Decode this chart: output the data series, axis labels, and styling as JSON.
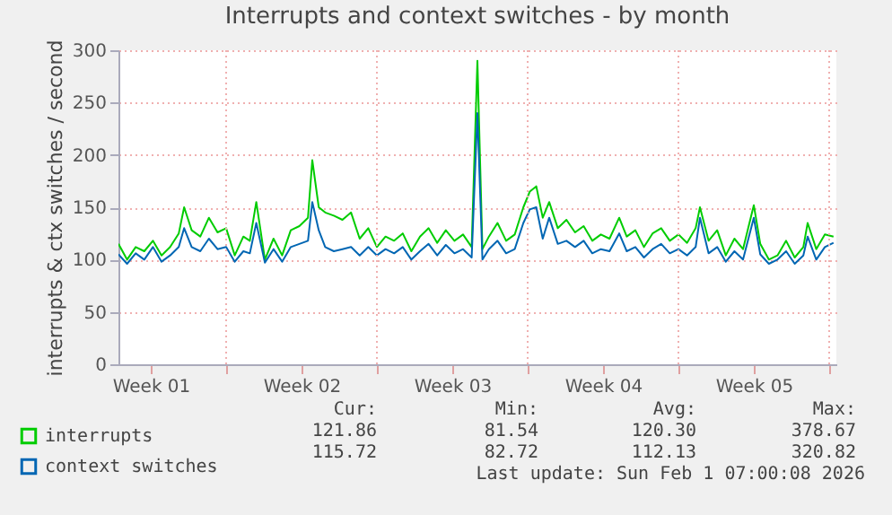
{
  "chart_data": {
    "type": "line",
    "title": "Interrupts and context switches - by month",
    "ylabel": "interrupts & ctx switches / second",
    "x": [
      "2025-12-31T00:00",
      "2025-12-31T09:36",
      "2025-12-31T19:12",
      "2026-01-01T04:48",
      "2026-01-01T14:24",
      "2026-01-02T00:00",
      "2026-01-02T09:36",
      "2026-01-02T19:12",
      "2026-01-03T01:12",
      "2026-01-03T09:36",
      "2026-01-03T19:12",
      "2026-01-04T04:48",
      "2026-01-04T14:24",
      "2026-01-05T00:00",
      "2026-01-05T09:36",
      "2026-01-05T19:12",
      "2026-01-06T02:24",
      "2026-01-06T09:36",
      "2026-01-06T19:12",
      "2026-01-07T04:48",
      "2026-01-07T14:24",
      "2026-01-08T00:00",
      "2026-01-08T09:36",
      "2026-01-08T19:12",
      "2026-01-09T00:00",
      "2026-01-09T07:12",
      "2026-01-09T14:24",
      "2026-01-10T00:00",
      "2026-01-10T09:36",
      "2026-01-10T19:12",
      "2026-01-11T04:48",
      "2026-01-11T14:24",
      "2026-01-12T00:00",
      "2026-01-12T09:36",
      "2026-01-12T19:12",
      "2026-01-13T04:48",
      "2026-01-13T14:24",
      "2026-01-14T00:00",
      "2026-01-14T09:36",
      "2026-01-14T19:12",
      "2026-01-15T04:48",
      "2026-01-15T14:24",
      "2026-01-16T00:00",
      "2026-01-16T09:36",
      "2026-01-16T16:00",
      "2026-01-16T21:36",
      "2026-01-17T04:48",
      "2026-01-17T14:24",
      "2026-01-18T00:00",
      "2026-01-18T09:36",
      "2026-01-18T19:12",
      "2026-01-19T02:24",
      "2026-01-19T09:36",
      "2026-01-19T16:48",
      "2026-01-20T00:00",
      "2026-01-20T09:36",
      "2026-01-20T19:12",
      "2026-01-21T04:48",
      "2026-01-21T14:24",
      "2026-01-22T00:00",
      "2026-01-22T09:36",
      "2026-01-22T19:12",
      "2026-01-23T06:00",
      "2026-01-23T14:24",
      "2026-01-24T00:00",
      "2026-01-24T09:36",
      "2026-01-24T19:12",
      "2026-01-25T04:48",
      "2026-01-25T14:24",
      "2026-01-26T00:00",
      "2026-01-26T09:36",
      "2026-01-26T19:12",
      "2026-01-27T00:00",
      "2026-01-27T09:36",
      "2026-01-27T19:12",
      "2026-01-28T04:48",
      "2026-01-28T14:24",
      "2026-01-29T00:00",
      "2026-01-29T12:00",
      "2026-01-29T19:12",
      "2026-01-30T04:48",
      "2026-01-30T14:24",
      "2026-01-31T00:00",
      "2026-01-31T09:36",
      "2026-01-31T19:12",
      "2026-02-01T00:00",
      "2026-02-01T09:36",
      "2026-02-01T19:12",
      "2026-02-02T04:48"
    ],
    "series": [
      {
        "name": "interrupts",
        "color": "#00cc00",
        "values": [
          115,
          100,
          112,
          108,
          118,
          104,
          112,
          125,
          150,
          128,
          122,
          140,
          126,
          130,
          104,
          122,
          118,
          155,
          100,
          120,
          104,
          128,
          132,
          140,
          195,
          150,
          145,
          142,
          138,
          145,
          120,
          130,
          112,
          122,
          118,
          125,
          108,
          122,
          130,
          116,
          128,
          118,
          124,
          112,
          290,
          110,
          122,
          135,
          118,
          124,
          150,
          165,
          170,
          140,
          155,
          130,
          138,
          126,
          132,
          118,
          124,
          120,
          140,
          122,
          128,
          112,
          125,
          130,
          118,
          124,
          116,
          130,
          150,
          118,
          128,
          104,
          120,
          110,
          152,
          115,
          100,
          104,
          118,
          102,
          112,
          135,
          110,
          124,
          122
        ]
      },
      {
        "name": "context switches",
        "color": "#0066b3",
        "values": [
          105,
          96,
          106,
          100,
          112,
          98,
          104,
          112,
          130,
          112,
          108,
          120,
          110,
          112,
          98,
          108,
          106,
          135,
          97,
          110,
          98,
          112,
          115,
          118,
          155,
          128,
          112,
          108,
          110,
          112,
          104,
          112,
          104,
          110,
          106,
          112,
          100,
          108,
          115,
          104,
          114,
          106,
          110,
          102,
          240,
          100,
          110,
          118,
          106,
          110,
          135,
          148,
          150,
          120,
          140,
          115,
          118,
          112,
          118,
          106,
          110,
          108,
          125,
          108,
          112,
          102,
          110,
          115,
          106,
          110,
          104,
          112,
          140,
          106,
          112,
          98,
          108,
          100,
          140,
          105,
          96,
          100,
          108,
          96,
          104,
          122,
          100,
          112,
          116
        ]
      }
    ],
    "xlim": [
      "2025-12-31T00:00",
      "2026-02-02T08:00"
    ],
    "xticks": [
      {
        "value": "2026-01-01T12:00",
        "label": "Week 01"
      },
      {
        "value": "2026-01-05T00:00",
        "label": null
      },
      {
        "value": "2026-01-08T12:00",
        "label": "Week 02"
      },
      {
        "value": "2026-01-12T00:00",
        "label": null
      },
      {
        "value": "2026-01-15T12:00",
        "label": "Week 03"
      },
      {
        "value": "2026-01-19T00:00",
        "label": null
      },
      {
        "value": "2026-01-22T12:00",
        "label": "Week 04"
      },
      {
        "value": "2026-01-26T00:00",
        "label": null
      },
      {
        "value": "2026-01-29T12:00",
        "label": "Week 05"
      },
      {
        "value": "2026-02-02T00:00",
        "label": null
      }
    ],
    "ylim": [
      0,
      300
    ],
    "yticks": [
      0,
      50,
      100,
      150,
      200,
      250,
      300
    ],
    "grid": true,
    "legend": "bottom left",
    "line_style": "solid",
    "annotations": [
      "Cur:",
      "Min:",
      "Avg:",
      "Max:",
      "121.86",
      "81.54",
      "120.30",
      "378.67",
      "115.72",
      "82.72",
      "112.13",
      "320.82",
      "Last update: Sun Feb  1 07:00:08 2026"
    ]
  }
}
